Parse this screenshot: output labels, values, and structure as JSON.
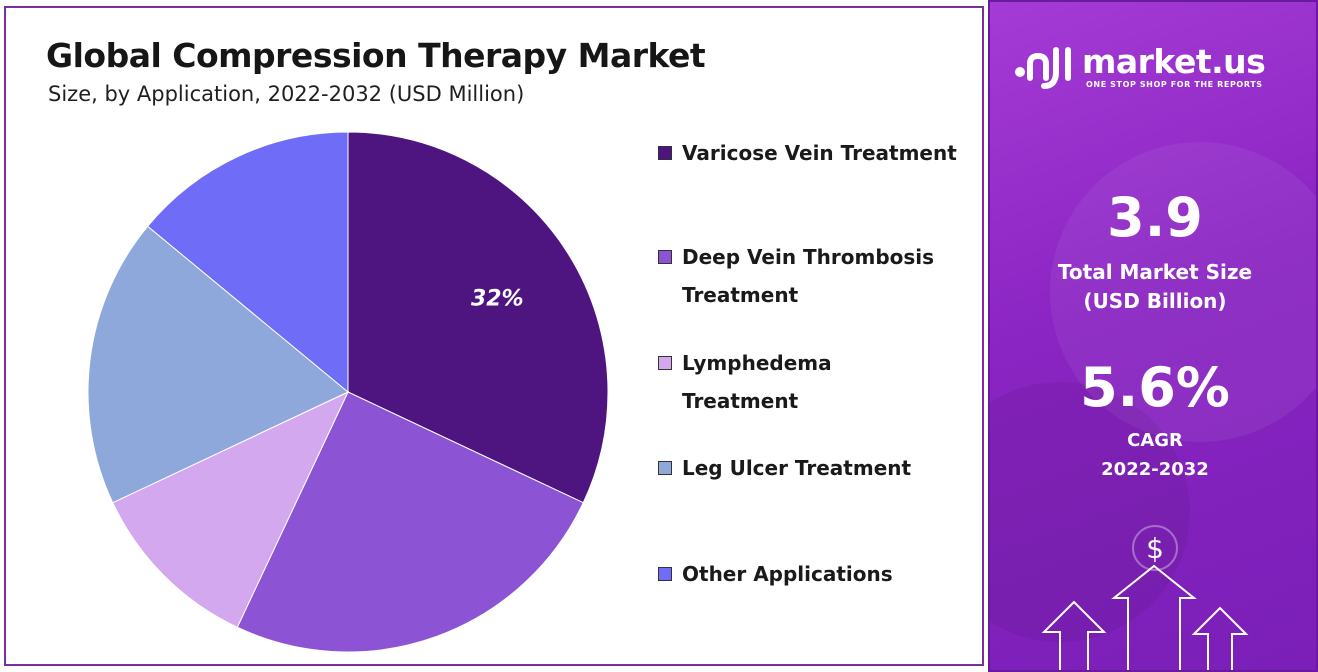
{
  "header": {
    "title": "Global Compression Therapy Market",
    "subtitle": "Size, by Application, 2022-2032 (USD Million)"
  },
  "chart_data": {
    "type": "pie",
    "title": "Global Compression Therapy Market",
    "subtitle": "Size, by Application, 2022-2032 (USD Million)",
    "categories": [
      "Varicose Vein Treatment",
      "Deep Vein Thrombosis Treatment",
      "Lymphedema Treatment",
      "Leg Ulcer Treatment",
      "Other Applications"
    ],
    "values": [
      32,
      25,
      11,
      18,
      14
    ],
    "colors": [
      "#4e1581",
      "#8c54d4",
      "#d4a8ee",
      "#8ea8dc",
      "#6f6cf7"
    ],
    "data_labels": [
      "32%",
      "",
      "",
      "",
      ""
    ],
    "legend_position": "right"
  },
  "legend": [
    {
      "label": "Varicose Vein Treatment",
      "color": "#4e1581"
    },
    {
      "label": "Deep Vein Thrombosis Treatment",
      "color": "#8c54d4"
    },
    {
      "label": "Lymphedema Treatment",
      "color": "#d4a8ee"
    },
    {
      "label": "Leg Ulcer Treatment",
      "color": "#8ea8dc"
    },
    {
      "label": "Other Applications",
      "color": "#6f6cf7"
    }
  ],
  "brand": {
    "name": "market.us",
    "tagline": "ONE STOP SHOP FOR THE REPORTS"
  },
  "stats": {
    "market_size_value": "3.9",
    "market_size_label_1": "Total Market Size",
    "market_size_label_2": "(USD Billion)",
    "cagr_value": "5.6%",
    "cagr_label": "CAGR",
    "cagr_period": "2022-2032"
  },
  "icons": {
    "dollar": "$"
  }
}
